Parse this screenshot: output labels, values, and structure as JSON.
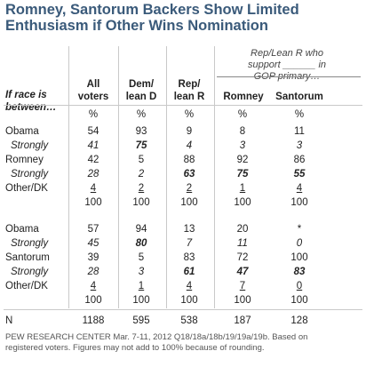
{
  "title_line1": "Romney, Santorum Backers Show Limited",
  "title_line2": "Enthusiasm if Other Wins Nomination",
  "subheader_line1": "Rep/Lean R who",
  "subheader_line2": "support ______ in",
  "subheader_line3": "GOP primary…",
  "race_label_line1": "If race is",
  "race_label_line2": "between…",
  "columns": [
    {
      "line1": "All",
      "line2": "voters"
    },
    {
      "line1": "Dem/",
      "line2": "lean D"
    },
    {
      "line1": "Rep/",
      "line2": "lean R"
    },
    {
      "line1": "",
      "line2": "Romney"
    },
    {
      "line1": "",
      "line2": "Santorum"
    }
  ],
  "pct_row": [
    "%",
    "%",
    "%",
    "%",
    "%"
  ],
  "block1": [
    {
      "label": "Obama",
      "values": [
        "54",
        "93",
        "9",
        "8",
        "11"
      ]
    },
    {
      "label": "Strongly",
      "values": [
        "41",
        "75",
        "4",
        "3",
        "3"
      ]
    },
    {
      "label": "Romney",
      "values": [
        "42",
        "5",
        "88",
        "92",
        "86"
      ]
    },
    {
      "label": "Strongly",
      "values": [
        "28",
        "2",
        "63",
        "75",
        "55"
      ]
    },
    {
      "label": "Other/DK",
      "values": [
        "4",
        "2",
        "2",
        "1",
        "4"
      ]
    },
    {
      "label": "",
      "values": [
        "100",
        "100",
        "100",
        "100",
        "100"
      ]
    }
  ],
  "block2": [
    {
      "label": "Obama",
      "values": [
        "57",
        "94",
        "13",
        "20",
        "*"
      ]
    },
    {
      "label": "Strongly",
      "values": [
        "45",
        "80",
        "7",
        "11",
        "0"
      ]
    },
    {
      "label": "Santorum",
      "values": [
        "39",
        "5",
        "83",
        "72",
        "100"
      ]
    },
    {
      "label": "Strongly",
      "values": [
        "28",
        "3",
        "61",
        "47",
        "83"
      ]
    },
    {
      "label": "Other/DK",
      "values": [
        "4",
        "1",
        "4",
        "7",
        "0"
      ]
    },
    {
      "label": "",
      "values": [
        "100",
        "100",
        "100",
        "100",
        "100"
      ]
    }
  ],
  "n_row": {
    "label": "N",
    "values": [
      "1188",
      "595",
      "538",
      "187",
      "128"
    ]
  },
  "note_line1": "PEW RESEARCH CENTER Mar. 7-11, 2012 Q18/18a/18b/19/19a/19b. Based on",
  "note_line2": "registered voters. Figures may not add to 100% because of rounding."
}
